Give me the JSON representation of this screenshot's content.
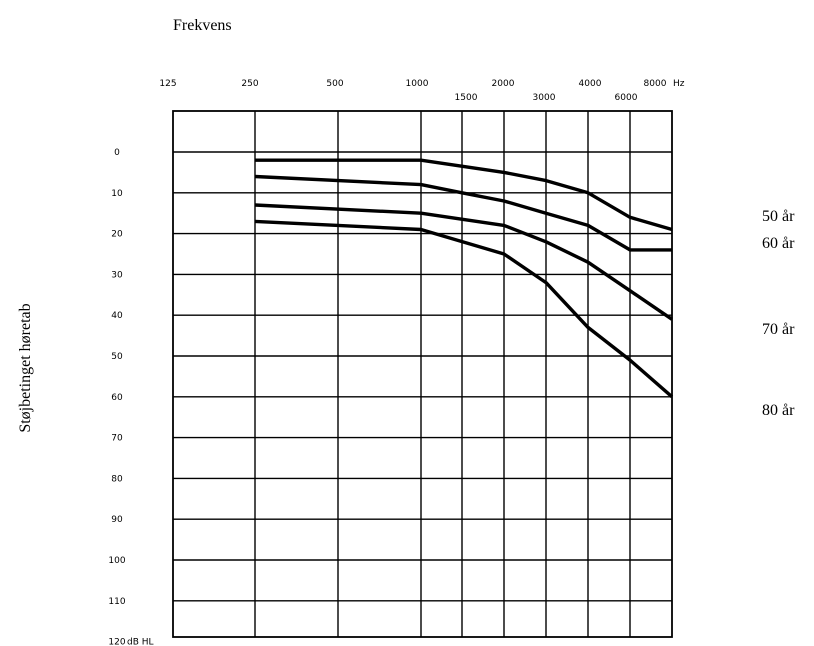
{
  "chart_data": {
    "type": "line",
    "title": "Frekvens",
    "ylabel": "Støjbetinget høretab",
    "x_unit": "Hz",
    "y_unit": "dB HL",
    "x_ticks_top": [
      "125",
      "250",
      "500",
      "1000",
      "2000",
      "4000",
      "8000"
    ],
    "x_ticks_bottom": [
      "1500",
      "3000",
      "6000"
    ],
    "y_ticks": [
      "0",
      "10",
      "20",
      "30",
      "40",
      "50",
      "60",
      "70",
      "80",
      "90",
      "100",
      "110",
      "120"
    ],
    "ylim": [
      0,
      120
    ],
    "y_inverted": true,
    "grid": true,
    "series": [
      {
        "name": "50 år",
        "x": [
          250,
          1000,
          2000,
          3000,
          4000,
          6000,
          8000
        ],
        "y": [
          2,
          2,
          5,
          7,
          10,
          16,
          19
        ]
      },
      {
        "name": "60 år",
        "x": [
          250,
          1000,
          1500,
          2000,
          3000,
          4000,
          6000,
          8000
        ],
        "y": [
          6,
          8,
          10,
          12,
          15,
          18,
          24,
          24
        ]
      },
      {
        "name": "70 år",
        "x": [
          250,
          1000,
          2000,
          3000,
          4000,
          6000,
          8000
        ],
        "y": [
          13,
          15,
          18,
          22,
          27,
          34,
          41
        ]
      },
      {
        "name": "80 år",
        "x": [
          250,
          1000,
          2000,
          3000,
          4000,
          6000,
          8000
        ],
        "y": [
          17,
          19,
          25,
          32,
          43,
          51,
          60
        ]
      }
    ]
  }
}
